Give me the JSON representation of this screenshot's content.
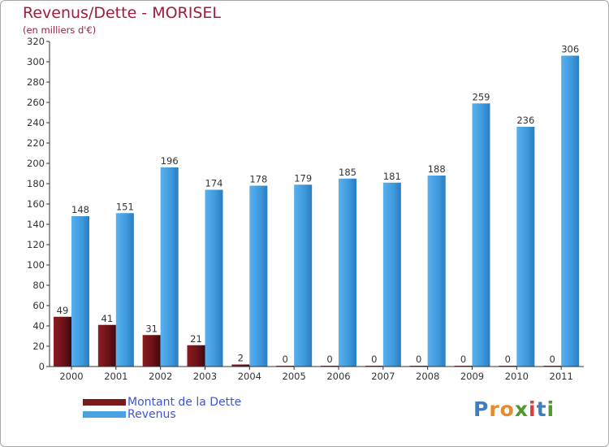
{
  "chart_data": {
    "type": "bar",
    "title": "Revenus/Dette - MORISEL",
    "subtitle": "(en milliers d'€)",
    "xlabel": "",
    "ylabel": "",
    "categories": [
      "2000",
      "2001",
      "2002",
      "2003",
      "2004",
      "2005",
      "2006",
      "2007",
      "2008",
      "2009",
      "2010",
      "2011"
    ],
    "series": [
      {
        "name": "Montant de la Dette",
        "color": "#7a1a1f",
        "values": [
          49,
          41,
          31,
          21,
          2,
          0,
          0,
          0,
          0,
          0,
          0,
          0
        ]
      },
      {
        "name": "Revenus",
        "color": "#4aa2e3",
        "values": [
          148,
          151,
          196,
          174,
          178,
          179,
          185,
          181,
          188,
          259,
          236,
          306
        ]
      }
    ],
    "ylim": [
      0,
      320
    ],
    "yticks": [
      0,
      20,
      40,
      60,
      80,
      100,
      120,
      140,
      160,
      180,
      200,
      220,
      240,
      260,
      280,
      300,
      320
    ],
    "grid": false,
    "legend_position": "bottom-left"
  },
  "logo": {
    "letters": [
      "P",
      "r",
      "o",
      "x",
      "i",
      "t",
      "i"
    ],
    "colors": [
      "#3f7fc0",
      "#e8892b",
      "#e8892b",
      "#4f9a2e",
      "#e03a3a",
      "#3f7fc0",
      "#4f9a2e"
    ]
  }
}
